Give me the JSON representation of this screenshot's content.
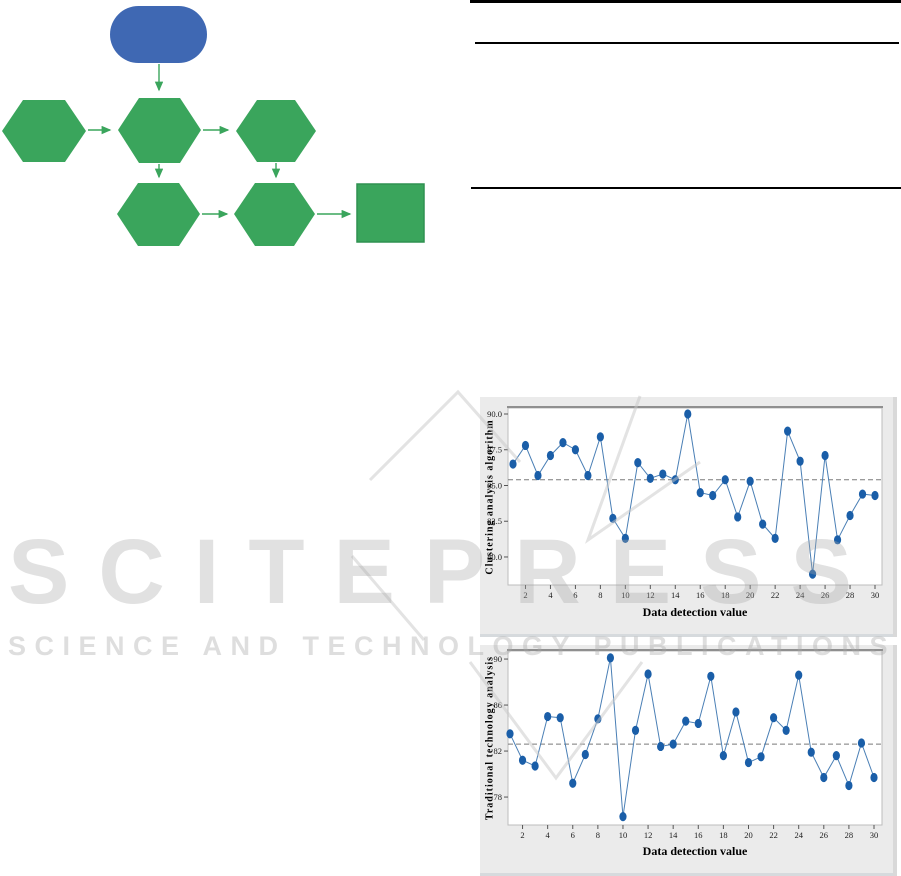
{
  "watermark": {
    "line1": "SCITEPRESS",
    "line2": "SCIENCE AND TECHNOLOGY PUBLICATIONS"
  },
  "flowchart": {
    "start_color": "#3f68b3",
    "node_color": "#3aa55c",
    "node_border": "#2f9150",
    "arrow_color": "#3aa55c",
    "nodes": [
      "start",
      "step-1",
      "step-2",
      "step-3",
      "step-4",
      "step-5",
      "end"
    ]
  },
  "chart_data": [
    {
      "type": "line",
      "title": "",
      "ylabel": "Clustering analysis algorithm",
      "xlabel": "Data detection value",
      "x": [
        1,
        2,
        3,
        4,
        5,
        6,
        7,
        8,
        9,
        10,
        11,
        12,
        13,
        14,
        15,
        16,
        17,
        18,
        19,
        20,
        21,
        22,
        23,
        24,
        25,
        26,
        27,
        28,
        29,
        30
      ],
      "values": [
        86.5,
        87.8,
        85.7,
        87.1,
        88.0,
        87.5,
        85.7,
        88.4,
        82.7,
        81.3,
        86.6,
        85.5,
        85.8,
        85.4,
        90.0,
        84.5,
        84.3,
        85.4,
        82.8,
        85.3,
        82.3,
        81.3,
        88.8,
        86.7,
        78.8,
        87.1,
        81.2,
        82.9,
        84.4,
        84.3
      ],
      "mean_line": 85.4,
      "ylim": [
        78.0,
        90.4
      ],
      "yticks": {
        "values": [
          90.0,
          87.5,
          85.0,
          82.5,
          80.0
        ],
        "labels": [
          "90.0",
          "87.5",
          "85.0",
          "82.5",
          "80.0"
        ]
      },
      "xticks": [
        2,
        4,
        6,
        8,
        10,
        12,
        14,
        16,
        18,
        20,
        22,
        24,
        26,
        28,
        30
      ],
      "grid": false,
      "legend": "none",
      "marker_color": "#1a5ea8",
      "line_color": "#4a7fb5",
      "mean_color": "#7a7a7a",
      "tick_color": "#1c1c1c"
    },
    {
      "type": "line",
      "title": "",
      "ylabel": "Traditional technology analysis",
      "xlabel": "Data detection value",
      "x": [
        1,
        2,
        3,
        4,
        5,
        6,
        7,
        8,
        9,
        10,
        11,
        12,
        13,
        14,
        15,
        16,
        17,
        18,
        19,
        20,
        21,
        22,
        23,
        24,
        25,
        26,
        27,
        28,
        29,
        30
      ],
      "values": [
        83.5,
        81.2,
        80.7,
        85.0,
        84.9,
        79.2,
        81.7,
        84.8,
        90.1,
        76.3,
        83.8,
        88.7,
        82.4,
        82.6,
        84.6,
        84.4,
        88.5,
        81.6,
        85.4,
        81.0,
        81.5,
        84.9,
        83.8,
        88.6,
        81.9,
        79.7,
        81.6,
        79.0,
        82.7,
        79.7
      ],
      "mean_line": 82.6,
      "ylim": [
        76.0,
        90.6
      ],
      "yticks": {
        "values": [
          90,
          86,
          82,
          78
        ],
        "labels": [
          "90",
          "86",
          "82",
          "78"
        ]
      },
      "xticks": [
        2,
        4,
        6,
        8,
        10,
        12,
        14,
        16,
        18,
        20,
        22,
        24,
        26,
        28,
        30
      ],
      "grid": false,
      "legend": "none",
      "marker_color": "#1a5ea8",
      "line_color": "#4a7fb5",
      "mean_color": "#7a7a7a",
      "tick_color": "#1c1c1c"
    }
  ]
}
